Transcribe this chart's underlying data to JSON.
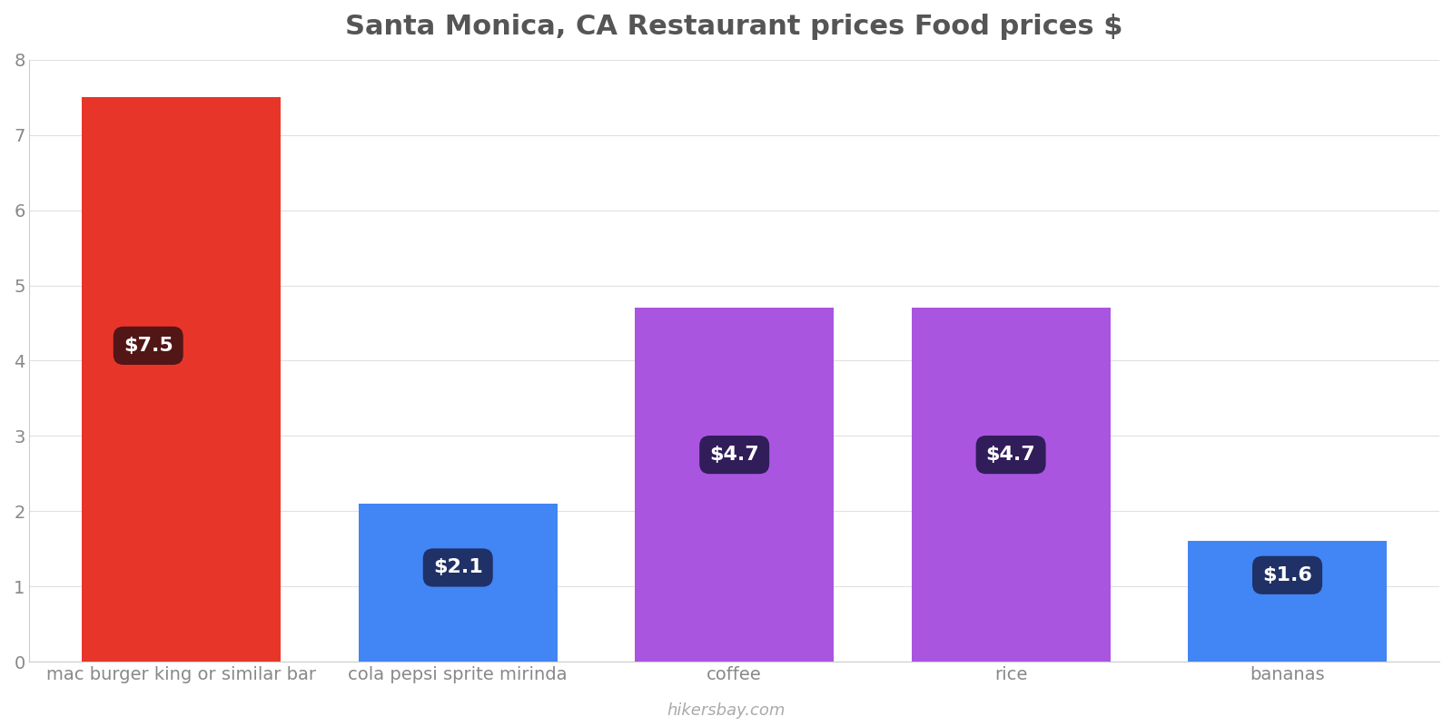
{
  "title": "Santa Monica, CA Restaurant prices Food prices $",
  "categories": [
    "mac burger king or similar bar",
    "cola pepsi sprite mirinda",
    "coffee",
    "rice",
    "bananas"
  ],
  "values": [
    7.5,
    2.1,
    4.7,
    4.7,
    1.6
  ],
  "bar_colors": [
    "#e8352a",
    "#4285f4",
    "#aa55e0",
    "#aa55e0",
    "#4285f4"
  ],
  "label_texts": [
    "$7.5",
    "$2.1",
    "$4.7",
    "$4.7",
    "$1.6"
  ],
  "label_box_colors": [
    "#4a1515",
    "#1e2d5e",
    "#2a1a52",
    "#2a1a52",
    "#1e2d5e"
  ],
  "ylim": [
    0,
    8
  ],
  "yticks": [
    0,
    1,
    2,
    3,
    4,
    5,
    6,
    7,
    8
  ],
  "title_fontsize": 22,
  "tick_fontsize": 14,
  "label_fontsize": 16,
  "watermark": "hikersbay.com",
  "background_color": "#ffffff",
  "label_y_abs": [
    4.2,
    1.25,
    2.75,
    2.75,
    1.15
  ],
  "label_x_offset": [
    -0.12,
    0.0,
    0.0,
    0.0,
    0.0
  ],
  "bar_width": 0.72
}
